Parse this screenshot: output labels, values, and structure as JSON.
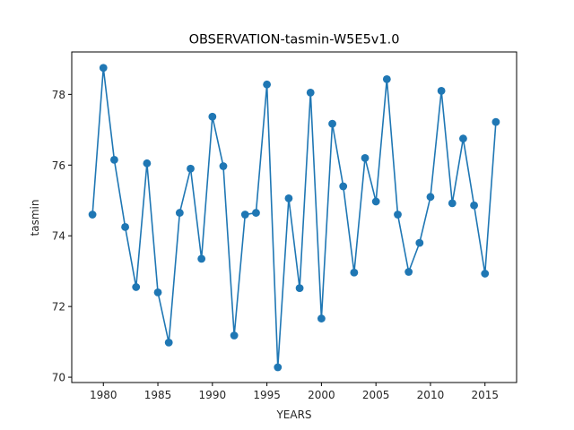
{
  "chart_data": {
    "type": "line",
    "title": "OBSERVATION-tasmin-W5E5v1.0",
    "xlabel": "YEARS",
    "ylabel": "tasmin",
    "xlim": [
      1977.1,
      2017.9
    ],
    "ylim": [
      69.85,
      79.2
    ],
    "xticks": [
      1980,
      1985,
      1990,
      1995,
      2000,
      2005,
      2010,
      2015
    ],
    "yticks": [
      70,
      72,
      74,
      76,
      78
    ],
    "grid": false,
    "line_color": "#1f77b4",
    "marker": "circle",
    "x": [
      1979,
      1980,
      1981,
      1982,
      1983,
      1984,
      1985,
      1986,
      1987,
      1988,
      1989,
      1990,
      1991,
      1992,
      1993,
      1994,
      1995,
      1996,
      1997,
      1998,
      1999,
      2000,
      2001,
      2002,
      2003,
      2004,
      2005,
      2006,
      2007,
      2008,
      2009,
      2010,
      2011,
      2012,
      2013,
      2014,
      2015,
      2016
    ],
    "y": [
      74.6,
      78.75,
      76.15,
      74.25,
      72.55,
      76.05,
      72.4,
      70.98,
      74.65,
      75.9,
      73.35,
      77.37,
      75.97,
      71.18,
      74.6,
      74.65,
      78.28,
      70.28,
      75.06,
      72.52,
      78.05,
      71.66,
      77.17,
      75.4,
      72.96,
      76.2,
      74.97,
      78.43,
      74.6,
      72.98,
      73.8,
      75.1,
      78.1,
      74.92,
      76.75,
      74.86,
      72.93,
      77.22
    ]
  }
}
